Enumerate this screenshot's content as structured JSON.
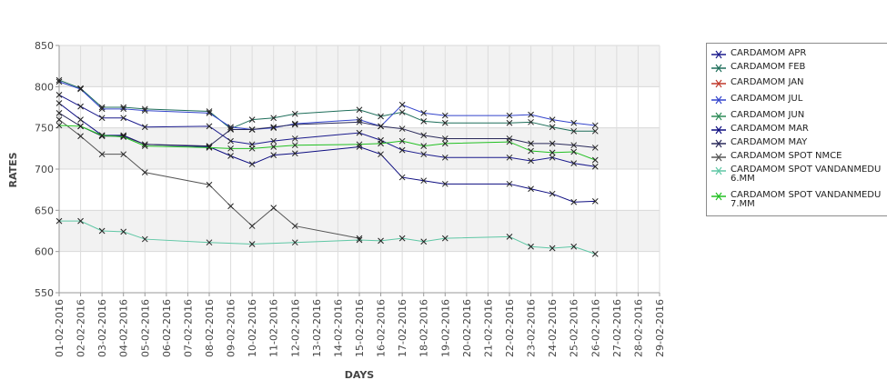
{
  "chart_data": {
    "type": "line",
    "xlabel": "DAYS",
    "ylabel": "RATES",
    "ylim": [
      550,
      850
    ],
    "y_ticks": [
      550,
      600,
      650,
      700,
      750,
      800,
      850
    ],
    "x": [
      "01-02-2016",
      "02-02-2016",
      "03-02-2016",
      "04-02-2016",
      "05-02-2016",
      "06-02-2016",
      "07-02-2016",
      "08-02-2016",
      "09-02-2016",
      "10-02-2016",
      "11-02-2016",
      "12-02-2016",
      "13-02-2016",
      "14-02-2016",
      "15-02-2016",
      "16-02-2016",
      "17-02-2016",
      "18-02-2016",
      "19-02-2016",
      "20-02-2016",
      "21-02-2016",
      "22-02-2016",
      "23-02-2016",
      "24-02-2016",
      "25-02-2016",
      "26-02-2016",
      "27-02-2016",
      "28-02-2016",
      "29-02-2016"
    ],
    "grid": true,
    "legend_position": "right",
    "series": [
      {
        "name": "CARDAMOM APR",
        "color": "#1a1a8c",
        "points": [
          [
            "01-02-2016",
            790
          ],
          [
            "02-02-2016",
            776
          ],
          [
            "03-02-2016",
            762
          ],
          [
            "04-02-2016",
            762
          ],
          [
            "05-02-2016",
            751
          ],
          [
            "08-02-2016",
            752
          ],
          [
            "09-02-2016",
            734
          ],
          [
            "10-02-2016",
            730
          ],
          [
            "11-02-2016",
            734
          ],
          [
            "12-02-2016",
            737
          ],
          [
            "15-02-2016",
            744
          ],
          [
            "16-02-2016",
            735
          ],
          [
            "17-02-2016",
            723
          ],
          [
            "18-02-2016",
            718
          ],
          [
            "19-02-2016",
            714
          ],
          [
            "22-02-2016",
            714
          ],
          [
            "23-02-2016",
            710
          ],
          [
            "24-02-2016",
            714
          ],
          [
            "25-02-2016",
            707
          ],
          [
            "26-02-2016",
            703
          ]
        ]
      },
      {
        "name": "CARDAMOM FEB",
        "color": "#1e6e5a",
        "points": [
          [
            "01-02-2016",
            808
          ],
          [
            "02-02-2016",
            798
          ],
          [
            "03-02-2016",
            775
          ],
          [
            "04-02-2016",
            775
          ],
          [
            "05-02-2016",
            773
          ],
          [
            "08-02-2016",
            770
          ],
          [
            "09-02-2016",
            749
          ],
          [
            "10-02-2016",
            760
          ],
          [
            "11-02-2016",
            762
          ],
          [
            "12-02-2016",
            767
          ],
          [
            "15-02-2016",
            772
          ],
          [
            "16-02-2016",
            764
          ],
          [
            "17-02-2016",
            769
          ],
          [
            "18-02-2016",
            758
          ],
          [
            "19-02-2016",
            756
          ],
          [
            "22-02-2016",
            756
          ],
          [
            "23-02-2016",
            757
          ],
          [
            "24-02-2016",
            751
          ],
          [
            "25-02-2016",
            746
          ],
          [
            "26-02-2016",
            746
          ]
        ]
      },
      {
        "name": "CARDAMOM JAN",
        "color": "#c0392b",
        "points": []
      },
      {
        "name": "CARDAMOM JUL",
        "color": "#3344cc",
        "points": [
          [
            "01-02-2016",
            806
          ],
          [
            "02-02-2016",
            797
          ],
          [
            "03-02-2016",
            773
          ],
          [
            "04-02-2016",
            773
          ],
          [
            "05-02-2016",
            771
          ],
          [
            "08-02-2016",
            768
          ],
          [
            "09-02-2016",
            751
          ],
          [
            "10-02-2016",
            748
          ],
          [
            "11-02-2016",
            750
          ],
          [
            "12-02-2016",
            755
          ],
          [
            "15-02-2016",
            760
          ],
          [
            "16-02-2016",
            752
          ],
          [
            "17-02-2016",
            778
          ],
          [
            "18-02-2016",
            768
          ],
          [
            "19-02-2016",
            765
          ],
          [
            "22-02-2016",
            765
          ],
          [
            "23-02-2016",
            766
          ],
          [
            "24-02-2016",
            760
          ],
          [
            "25-02-2016",
            756
          ],
          [
            "26-02-2016",
            753
          ]
        ]
      },
      {
        "name": "CARDAMOM JUN",
        "color": "#2e8b57",
        "points": []
      },
      {
        "name": "CARDAMOM MAR",
        "color": "#0d0d80",
        "points": [
          [
            "01-02-2016",
            780
          ],
          [
            "02-02-2016",
            760
          ],
          [
            "03-02-2016",
            741
          ],
          [
            "04-02-2016",
            741
          ],
          [
            "05-02-2016",
            730
          ],
          [
            "08-02-2016",
            727
          ],
          [
            "09-02-2016",
            716
          ],
          [
            "10-02-2016",
            706
          ],
          [
            "11-02-2016",
            717
          ],
          [
            "12-02-2016",
            719
          ],
          [
            "15-02-2016",
            727
          ],
          [
            "16-02-2016",
            718
          ],
          [
            "17-02-2016",
            690
          ],
          [
            "18-02-2016",
            686
          ],
          [
            "19-02-2016",
            682
          ],
          [
            "22-02-2016",
            682
          ],
          [
            "23-02-2016",
            676
          ],
          [
            "24-02-2016",
            670
          ],
          [
            "25-02-2016",
            660
          ],
          [
            "26-02-2016",
            661
          ]
        ]
      },
      {
        "name": "CARDAMOM MAY",
        "color": "#2a2a5a",
        "points": [
          [
            "01-02-2016",
            768
          ],
          [
            "02-02-2016",
            752
          ],
          [
            "03-02-2016",
            740
          ],
          [
            "04-02-2016",
            740
          ],
          [
            "05-02-2016",
            730
          ],
          [
            "08-02-2016",
            728
          ],
          [
            "09-02-2016",
            748
          ],
          [
            "10-02-2016",
            748
          ],
          [
            "11-02-2016",
            751
          ],
          [
            "12-02-2016",
            754
          ],
          [
            "15-02-2016",
            757
          ],
          [
            "16-02-2016",
            752
          ],
          [
            "17-02-2016",
            749
          ],
          [
            "18-02-2016",
            741
          ],
          [
            "19-02-2016",
            737
          ],
          [
            "22-02-2016",
            737
          ],
          [
            "23-02-2016",
            731
          ],
          [
            "24-02-2016",
            731
          ],
          [
            "25-02-2016",
            729
          ],
          [
            "26-02-2016",
            726
          ]
        ]
      },
      {
        "name": "CARDAMOM SPOT NMCE",
        "color": "#555555",
        "points": [
          [
            "01-02-2016",
            760
          ],
          [
            "02-02-2016",
            740
          ],
          [
            "03-02-2016",
            718
          ],
          [
            "04-02-2016",
            718
          ],
          [
            "05-02-2016",
            696
          ],
          [
            "08-02-2016",
            681
          ],
          [
            "09-02-2016",
            655
          ],
          [
            "10-02-2016",
            631
          ],
          [
            "11-02-2016",
            653
          ],
          [
            "12-02-2016",
            631
          ],
          [
            "15-02-2016",
            616
          ]
        ]
      },
      {
        "name": "CARDAMOM SPOT VANDANMEDU 6.MM",
        "color": "#5fc7a5",
        "points": [
          [
            "01-02-2016",
            637
          ],
          [
            "02-02-2016",
            637
          ],
          [
            "03-02-2016",
            625
          ],
          [
            "04-02-2016",
            624
          ],
          [
            "05-02-2016",
            615
          ],
          [
            "08-02-2016",
            611
          ],
          [
            "10-02-2016",
            609
          ],
          [
            "12-02-2016",
            611
          ],
          [
            "15-02-2016",
            614
          ],
          [
            "16-02-2016",
            613
          ],
          [
            "17-02-2016",
            616
          ],
          [
            "18-02-2016",
            612
          ],
          [
            "19-02-2016",
            616
          ],
          [
            "22-02-2016",
            618
          ],
          [
            "23-02-2016",
            606
          ],
          [
            "24-02-2016",
            604
          ],
          [
            "25-02-2016",
            606
          ],
          [
            "26-02-2016",
            597
          ]
        ]
      },
      {
        "name": "CARDAMOM SPOT VANDANMEDU 7.MM",
        "color": "#22c022",
        "points": [
          [
            "01-02-2016",
            753
          ],
          [
            "02-02-2016",
            752
          ],
          [
            "03-02-2016",
            741
          ],
          [
            "04-02-2016",
            739
          ],
          [
            "05-02-2016",
            728
          ],
          [
            "08-02-2016",
            726
          ],
          [
            "09-02-2016",
            725
          ],
          [
            "10-02-2016",
            725
          ],
          [
            "11-02-2016",
            727
          ],
          [
            "12-02-2016",
            729
          ],
          [
            "15-02-2016",
            730
          ],
          [
            "16-02-2016",
            731
          ],
          [
            "17-02-2016",
            734
          ],
          [
            "18-02-2016",
            728
          ],
          [
            "19-02-2016",
            731
          ],
          [
            "22-02-2016",
            733
          ],
          [
            "23-02-2016",
            722
          ],
          [
            "24-02-2016",
            720
          ],
          [
            "25-02-2016",
            721
          ],
          [
            "26-02-2016",
            711
          ]
        ]
      }
    ]
  },
  "legend": {
    "items": [
      {
        "label": "CARDAMOM APR",
        "color": "#1a1a8c"
      },
      {
        "label": "CARDAMOM FEB",
        "color": "#1e6e5a"
      },
      {
        "label": "CARDAMOM JAN",
        "color": "#c0392b"
      },
      {
        "label": "CARDAMOM JUL",
        "color": "#3344cc"
      },
      {
        "label": "CARDAMOM JUN",
        "color": "#2e8b57"
      },
      {
        "label": "CARDAMOM MAR",
        "color": "#0d0d80"
      },
      {
        "label": "CARDAMOM MAY",
        "color": "#2a2a5a"
      },
      {
        "label": "CARDAMOM SPOT NMCE",
        "color": "#555555"
      },
      {
        "label": "CARDAMOM SPOT VANDANMEDU 6.MM",
        "color": "#5fc7a5"
      },
      {
        "label": "CARDAMOM SPOT VANDANMEDU 7.MM",
        "color": "#22c022"
      }
    ]
  }
}
